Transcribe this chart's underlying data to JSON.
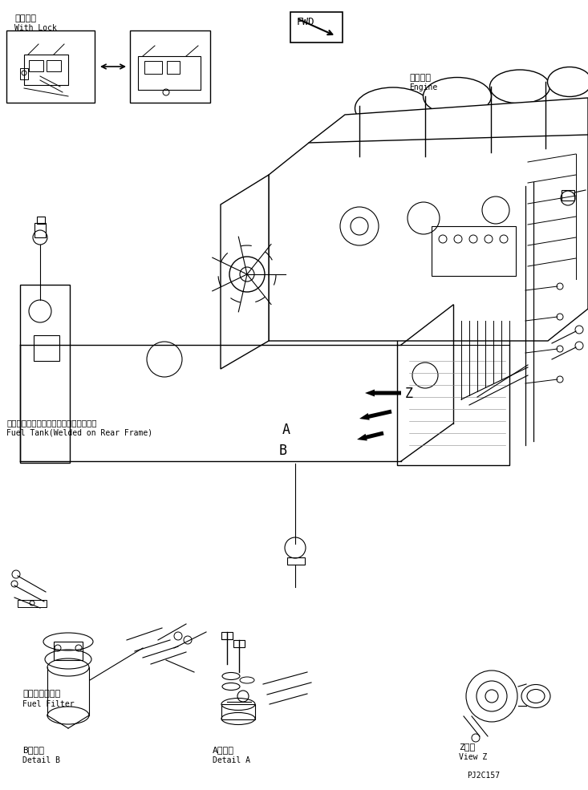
{
  "title": "",
  "background_color": "#ffffff",
  "line_color": "#000000",
  "text_color": "#000000",
  "fig_width": 7.33,
  "fig_height": 9.85,
  "dpi": 100,
  "labels": {
    "with_lock_jp": "ロック付",
    "with_lock_en": "With Lock",
    "fwd": "FWD",
    "engine_jp": "エンジン",
    "engine_en": "Engine",
    "fuel_tank_jp": "フェルタンク（リヤーフレームに溶接）",
    "fuel_tank_en": "Fuel Tank(Welded on Rear Frame)",
    "fuel_filter_jp": "フェルフィルタ",
    "fuel_filter_en": "Fuel Filter",
    "detail_b_jp": "B　詳細",
    "detail_b_en": "Detail B",
    "detail_a_jp": "A　詳細",
    "detail_a_en": "Detail A",
    "view_z_jp": "Z　視",
    "view_z_en": "View Z",
    "part_number": "PJ2C157",
    "label_z": "Z",
    "label_a": "A",
    "label_b": "B"
  }
}
